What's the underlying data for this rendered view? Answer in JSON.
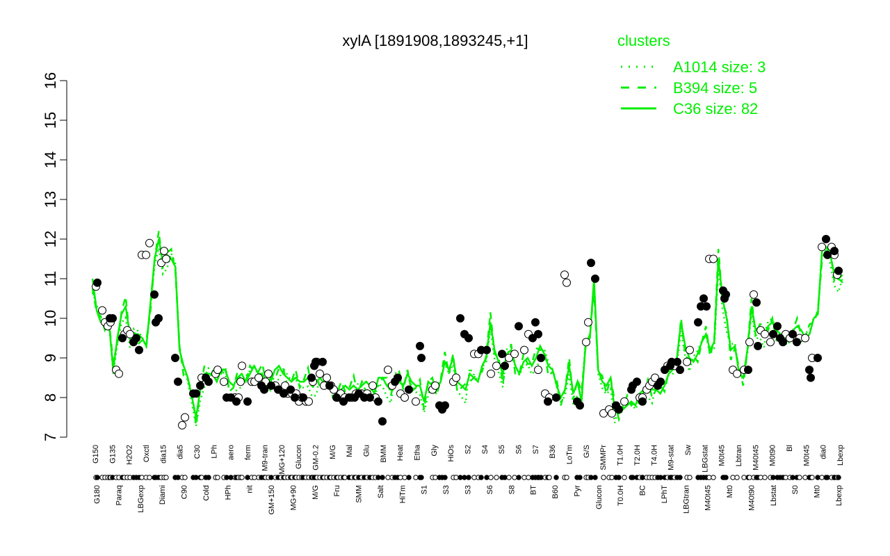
{
  "chart_data": {
    "type": "line",
    "title": "xylA [1891908,1893245,+1]",
    "ylim": [
      7,
      16
    ],
    "yticks": [
      7,
      8,
      9,
      10,
      11,
      12,
      13,
      14,
      15,
      16
    ],
    "legend": {
      "title": "clusters",
      "placement": "top-right",
      "entries": [
        {
          "label": "A1014 size: 3",
          "style": "dotted"
        },
        {
          "label": "B394 size: 5",
          "style": "dashed"
        },
        {
          "label": "C36 size: 82",
          "style": "solid"
        }
      ]
    },
    "line_color": "#00ee00",
    "xlabels_upper": [
      "G150",
      "G135",
      "H2O2",
      "Oxctl",
      "dia15",
      "dia5",
      "C30",
      "LPh",
      "aero",
      "ferm",
      "M9-tran",
      "MG+120",
      "Glucon",
      "GM-0.2",
      "M/G",
      "Mal",
      "Glu",
      "BMM",
      "Heat",
      "Etha",
      "Gly",
      "HiOs",
      "S2",
      "S4",
      "S5",
      "S6",
      "S7",
      "B36",
      "LoTm",
      "G/S",
      "SMMPr",
      "T1.0H",
      "T2.0H",
      "T4.0H",
      "M9-stat",
      "Sw",
      "LBGstat",
      "M0t45",
      "Lbtran",
      "M40t45",
      "M0t90",
      "Bl",
      "M0t45",
      "dia0",
      "Lbexp"
    ],
    "xlabels_lower": [
      "G180",
      "Paraq",
      "LBGexp",
      "Diami",
      "C90",
      "Cold",
      "HPh",
      "nit",
      "GM+150",
      "MG+90",
      "M/G",
      "Fru",
      "SMM",
      "Salt",
      "HiTm",
      "S1",
      "S3",
      "S3",
      "S6",
      "S8",
      "BT",
      "B60",
      "Pyr",
      "Glucon",
      "T0.0H",
      "BC",
      "LPhT",
      "LBGtran",
      "M40t45",
      "Mt0",
      "M40t90",
      "Lbstat",
      "S0",
      "Mt0",
      "Lbexp"
    ],
    "mean_values": [
      11.0,
      10.2,
      9.9,
      9.9,
      9.9,
      8.7,
      9.5,
      10.1,
      10.3,
      9.6,
      9.6,
      9.6,
      9.5,
      9.3,
      10.4,
      11.5,
      12.0,
      11.4,
      11.6,
      11.5,
      11.3,
      9.2,
      8.8,
      8.5,
      8.0,
      7.5,
      8.2,
      8.6,
      8.6,
      8.6,
      8.4,
      8.7,
      8.7,
      8.4,
      8.3,
      8.5,
      8.6,
      8.4,
      8.6,
      8.8,
      8.6,
      8.6,
      8.4,
      8.4,
      8.7,
      8.8,
      8.6,
      8.5,
      8.4,
      8.5,
      8.4,
      8.4,
      8.5,
      8.3,
      8.4,
      8.5,
      8.3,
      8.3,
      8.2,
      8.1,
      8.2,
      8.3,
      8.2,
      8.3,
      8.2,
      8.3,
      8.4,
      8.3,
      8.1,
      8.5,
      8.5,
      8.3,
      8.2,
      8.5,
      8.4,
      8.3,
      8.6,
      8.4,
      8.3,
      8.3,
      7.9,
      8.4,
      8.3,
      8.2,
      8.4,
      8.9,
      8.7,
      9.0,
      8.4,
      8.3,
      8.2,
      8.6,
      8.5,
      8.4,
      8.8,
      9.0,
      9.9,
      9.2,
      8.9,
      8.6,
      9.1,
      9.2,
      8.8,
      8.6,
      8.9,
      9.0,
      8.8,
      9.0,
      9.3,
      9.1,
      8.8,
      8.7,
      8.3,
      8.0,
      8.2,
      8.8,
      8.1,
      8.4,
      7.9,
      9.4,
      9.5,
      11.0,
      8.7,
      8.4,
      8.3,
      8.5,
      7.7,
      7.6,
      7.7,
      7.8,
      7.9,
      7.8,
      8.1,
      8.2,
      8.3,
      8.2,
      8.2,
      8.1,
      8.3,
      8.6,
      8.7,
      9.0,
      9.9,
      9.3,
      9.0,
      8.9,
      9.1,
      9.4,
      9.6,
      9.2,
      9.4,
      11.5,
      10.5,
      10.0,
      9.2,
      9.3,
      8.6,
      8.5,
      9.2,
      10.3,
      9.7,
      9.8,
      9.6,
      9.8,
      9.9,
      9.7,
      9.6,
      9.4,
      9.6,
      9.7,
      9.8,
      9.7,
      9.5,
      9.6,
      10.0,
      10.1,
      11.7,
      11.8,
      11.6,
      11.1,
      11.0,
      10.9
    ],
    "points_white": [
      [
        138,
        10.8
      ],
      [
        147,
        10.2
      ],
      [
        151,
        9.9
      ],
      [
        155,
        9.8
      ],
      [
        159,
        9.9
      ],
      [
        167,
        8.7
      ],
      [
        171,
        8.6
      ],
      [
        179,
        9.6
      ],
      [
        183,
        9.7
      ],
      [
        187,
        9.6
      ],
      [
        204,
        11.6
      ],
      [
        210,
        11.6
      ],
      [
        215,
        11.9
      ],
      [
        232,
        11.4
      ],
      [
        236,
        11.7
      ],
      [
        239,
        11.5
      ],
      [
        262,
        7.3
      ],
      [
        266,
        7.5
      ],
      [
        290,
        8.5
      ],
      [
        310,
        8.6
      ],
      [
        313,
        8.7
      ],
      [
        322,
        8.4
      ],
      [
        338,
        8.0
      ],
      [
        343,
        8.0
      ],
      [
        346,
        8.4
      ],
      [
        348,
        8.8
      ],
      [
        362,
        8.4
      ],
      [
        366,
        8.4
      ],
      [
        372,
        8.5
      ],
      [
        382,
        8.4
      ],
      [
        386,
        8.6
      ],
      [
        396,
        8.3
      ],
      [
        404,
        8.2
      ],
      [
        410,
        8.3
      ],
      [
        414,
        8.1
      ],
      [
        420,
        8.1
      ],
      [
        426,
        8.1
      ],
      [
        430,
        7.9
      ],
      [
        434,
        8.0
      ],
      [
        440,
        7.9
      ],
      [
        444,
        7.9
      ],
      [
        450,
        8.4
      ],
      [
        456,
        8.9
      ],
      [
        460,
        8.6
      ],
      [
        466,
        8.3
      ],
      [
        470,
        8.5
      ],
      [
        476,
        8.3
      ],
      [
        480,
        8.2
      ],
      [
        486,
        8.0
      ],
      [
        490,
        8.1
      ],
      [
        496,
        8.0
      ],
      [
        506,
        8.0
      ],
      [
        512,
        8.1
      ],
      [
        520,
        8.1
      ],
      [
        528,
        8.1
      ],
      [
        536,
        8.3
      ],
      [
        540,
        8.0
      ],
      [
        558,
        8.7
      ],
      [
        564,
        8.3
      ],
      [
        576,
        8.1
      ],
      [
        582,
        8.0
      ],
      [
        598,
        7.9
      ],
      [
        622,
        8.2
      ],
      [
        626,
        8.3
      ],
      [
        652,
        8.4
      ],
      [
        656,
        8.5
      ],
      [
        682,
        9.1
      ],
      [
        688,
        9.1
      ],
      [
        706,
        8.6
      ],
      [
        714,
        8.8
      ],
      [
        732,
        9.0
      ],
      [
        740,
        9.1
      ],
      [
        754,
        9.2
      ],
      [
        760,
        9.6
      ],
      [
        774,
        8.7
      ],
      [
        784,
        8.1
      ],
      [
        790,
        8.0
      ],
      [
        812,
        11.1
      ],
      [
        815,
        10.9
      ],
      [
        843,
        9.4
      ],
      [
        846,
        9.9
      ],
      [
        868,
        7.6
      ],
      [
        876,
        7.7
      ],
      [
        880,
        7.6
      ],
      [
        898,
        7.9
      ],
      [
        920,
        8.0
      ],
      [
        924,
        8.0
      ],
      [
        930,
        8.2
      ],
      [
        934,
        8.3
      ],
      [
        938,
        8.4
      ],
      [
        942,
        8.5
      ],
      [
        960,
        8.8
      ],
      [
        970,
        8.8
      ],
      [
        988,
        8.9
      ],
      [
        992,
        9.2
      ],
      [
        1020,
        11.5
      ],
      [
        1026,
        11.5
      ],
      [
        1054,
        8.7
      ],
      [
        1060,
        8.6
      ],
      [
        1070,
        8.7
      ],
      [
        1078,
        9.4
      ],
      [
        1084,
        10.6
      ],
      [
        1094,
        9.7
      ],
      [
        1100,
        9.6
      ],
      [
        1108,
        9.4
      ],
      [
        1130,
        9.6
      ],
      [
        1136,
        9.5
      ],
      [
        1150,
        9.5
      ],
      [
        1158,
        9.5
      ],
      [
        1168,
        9.0
      ],
      [
        1182,
        11.8
      ],
      [
        1196,
        11.8
      ],
      [
        1200,
        11.6
      ],
      [
        1204,
        11.1
      ]
    ],
    "points_black": [
      [
        140,
        10.9
      ],
      [
        158,
        10.0
      ],
      [
        162,
        10.0
      ],
      [
        176,
        9.5
      ],
      [
        192,
        9.4
      ],
      [
        196,
        9.5
      ],
      [
        200,
        9.2
      ],
      [
        222,
        10.6
      ],
      [
        224,
        9.9
      ],
      [
        228,
        10.0
      ],
      [
        252,
        9.0
      ],
      [
        256,
        8.4
      ],
      [
        278,
        8.1
      ],
      [
        282,
        8.1
      ],
      [
        288,
        8.3
      ],
      [
        296,
        8.5
      ],
      [
        300,
        8.4
      ],
      [
        326,
        8.0
      ],
      [
        332,
        8.0
      ],
      [
        340,
        7.9
      ],
      [
        356,
        7.9
      ],
      [
        376,
        8.3
      ],
      [
        380,
        8.2
      ],
      [
        390,
        8.3
      ],
      [
        400,
        8.2
      ],
      [
        408,
        8.1
      ],
      [
        418,
        8.2
      ],
      [
        424,
        8.0
      ],
      [
        436,
        8.0
      ],
      [
        448,
        8.5
      ],
      [
        452,
        8.8
      ],
      [
        454,
        8.9
      ],
      [
        464,
        8.9
      ],
      [
        474,
        8.3
      ],
      [
        484,
        8.0
      ],
      [
        494,
        7.9
      ],
      [
        502,
        8.0
      ],
      [
        510,
        8.0
      ],
      [
        516,
        8.1
      ],
      [
        524,
        8.0
      ],
      [
        532,
        8.0
      ],
      [
        544,
        7.9
      ],
      [
        550,
        7.4
      ],
      [
        568,
        8.4
      ],
      [
        572,
        8.5
      ],
      [
        588,
        8.2
      ],
      [
        604,
        9.3
      ],
      [
        606,
        9.0
      ],
      [
        632,
        7.8
      ],
      [
        636,
        7.7
      ],
      [
        640,
        7.8
      ],
      [
        662,
        10.0
      ],
      [
        668,
        9.6
      ],
      [
        674,
        9.5
      ],
      [
        692,
        9.2
      ],
      [
        700,
        9.2
      ],
      [
        722,
        9.1
      ],
      [
        726,
        8.8
      ],
      [
        746,
        9.8
      ],
      [
        766,
        9.5
      ],
      [
        770,
        9.9
      ],
      [
        774,
        9.6
      ],
      [
        778,
        9.0
      ],
      [
        788,
        7.9
      ],
      [
        800,
        8.0
      ],
      [
        830,
        7.9
      ],
      [
        834,
        7.8
      ],
      [
        850,
        11.4
      ],
      [
        856,
        11.0
      ],
      [
        886,
        7.8
      ],
      [
        890,
        7.7
      ],
      [
        908,
        8.2
      ],
      [
        910,
        8.3
      ],
      [
        916,
        8.4
      ],
      [
        924,
        7.9
      ],
      [
        946,
        8.3
      ],
      [
        950,
        8.4
      ],
      [
        956,
        8.7
      ],
      [
        964,
        8.8
      ],
      [
        966,
        8.9
      ],
      [
        974,
        8.9
      ],
      [
        978,
        8.7
      ],
      [
        1004,
        9.9
      ],
      [
        1008,
        10.3
      ],
      [
        1012,
        10.5
      ],
      [
        1016,
        10.3
      ],
      [
        1040,
        10.7
      ],
      [
        1042,
        10.5
      ],
      [
        1044,
        10.6
      ],
      [
        1076,
        8.7
      ],
      [
        1088,
        10.4
      ],
      [
        1090,
        9.3
      ],
      [
        1112,
        9.6
      ],
      [
        1118,
        9.8
      ],
      [
        1122,
        9.5
      ],
      [
        1126,
        9.4
      ],
      [
        1140,
        9.6
      ],
      [
        1146,
        9.4
      ],
      [
        1164,
        8.7
      ],
      [
        1166,
        8.5
      ],
      [
        1176,
        9.0
      ],
      [
        1188,
        12.0
      ],
      [
        1190,
        11.6
      ],
      [
        1200,
        11.7
      ],
      [
        1206,
        11.2
      ]
    ]
  }
}
